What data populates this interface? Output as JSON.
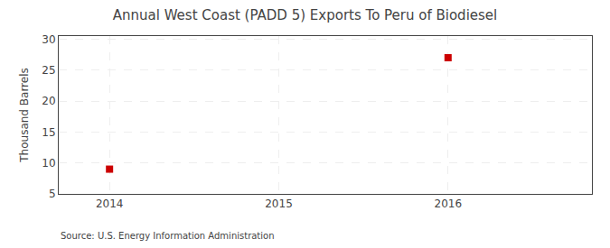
{
  "chart_data": {
    "type": "scatter",
    "title": "Annual West Coast (PADD 5) Exports To Peru of Biodiesel",
    "ylabel": "Thousand Barrels",
    "annotations": [
      "Source: U.S. Energy Information Administration"
    ],
    "x": [
      2014,
      2016
    ],
    "values": [
      9,
      27
    ],
    "color": "#cc0000",
    "marker": "square",
    "xlim": [
      2013.7,
      2016.85
    ],
    "ylim": [
      5,
      30.5
    ],
    "xticks": [
      2014,
      2015,
      2016
    ],
    "yticks": [
      5,
      10,
      15,
      20,
      25,
      30
    ],
    "grid": true
  }
}
